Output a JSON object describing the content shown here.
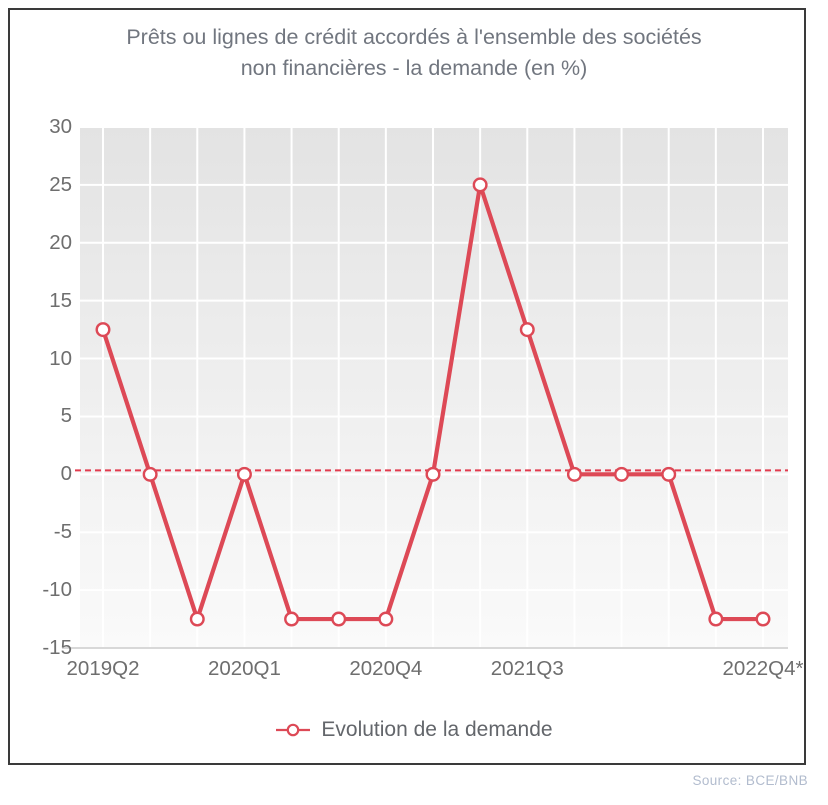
{
  "header": {
    "title_line1": "Prêts ou lignes de crédit accordés à l'ensemble des sociétés",
    "title_line2": "non financières - la demande (en %)"
  },
  "legend": {
    "label": "Evolution de la demande"
  },
  "footer": {
    "source": "Source: BCE/BNB"
  },
  "chart_data": {
    "type": "line",
    "title": "Prêts ou lignes de crédit accordés à l'ensemble des sociétés non financières - la demande (en %)",
    "x": [
      "2019Q2",
      "2019Q3",
      "2019Q4",
      "2020Q1",
      "2020Q2",
      "2020Q3",
      "2020Q4",
      "2021Q1",
      "2021Q2",
      "2021Q3",
      "2021Q4",
      "2022Q1",
      "2022Q2",
      "2022Q3",
      "2022Q4*"
    ],
    "series": [
      {
        "name": "Evolution de la demande",
        "values": [
          12.5,
          0,
          -12.5,
          0,
          -12.5,
          -12.5,
          -12.5,
          0,
          25,
          12.5,
          0,
          0,
          0,
          -12.5,
          -12.5
        ]
      }
    ],
    "ylim": [
      -15,
      30
    ],
    "yticks": [
      30,
      25,
      20,
      15,
      10,
      5,
      0,
      -5,
      -10,
      -15
    ],
    "xticks": [
      {
        "index": 0,
        "label": "2019Q2"
      },
      {
        "index": 3,
        "label": "2020Q1"
      },
      {
        "index": 6,
        "label": "2020Q4"
      },
      {
        "index": 9,
        "label": "2021Q3"
      },
      {
        "index": 14,
        "label": "2022Q4*"
      }
    ],
    "zero_line": 0,
    "grid": true,
    "legend_position": "bottom",
    "colors": {
      "line": "#dd4956",
      "marker_fill": "#ffffff",
      "zero_line": "#e23b4e",
      "plot_bg_top": "#e3e3e3",
      "plot_bg_bottom": "#fafafa",
      "grid": "#ffffff",
      "axis_line": "#cccccc",
      "title_text": "#71767f",
      "tick_text": "#6e6e6e",
      "legend_text": "#63666b",
      "source_text": "#b2bcce"
    }
  }
}
